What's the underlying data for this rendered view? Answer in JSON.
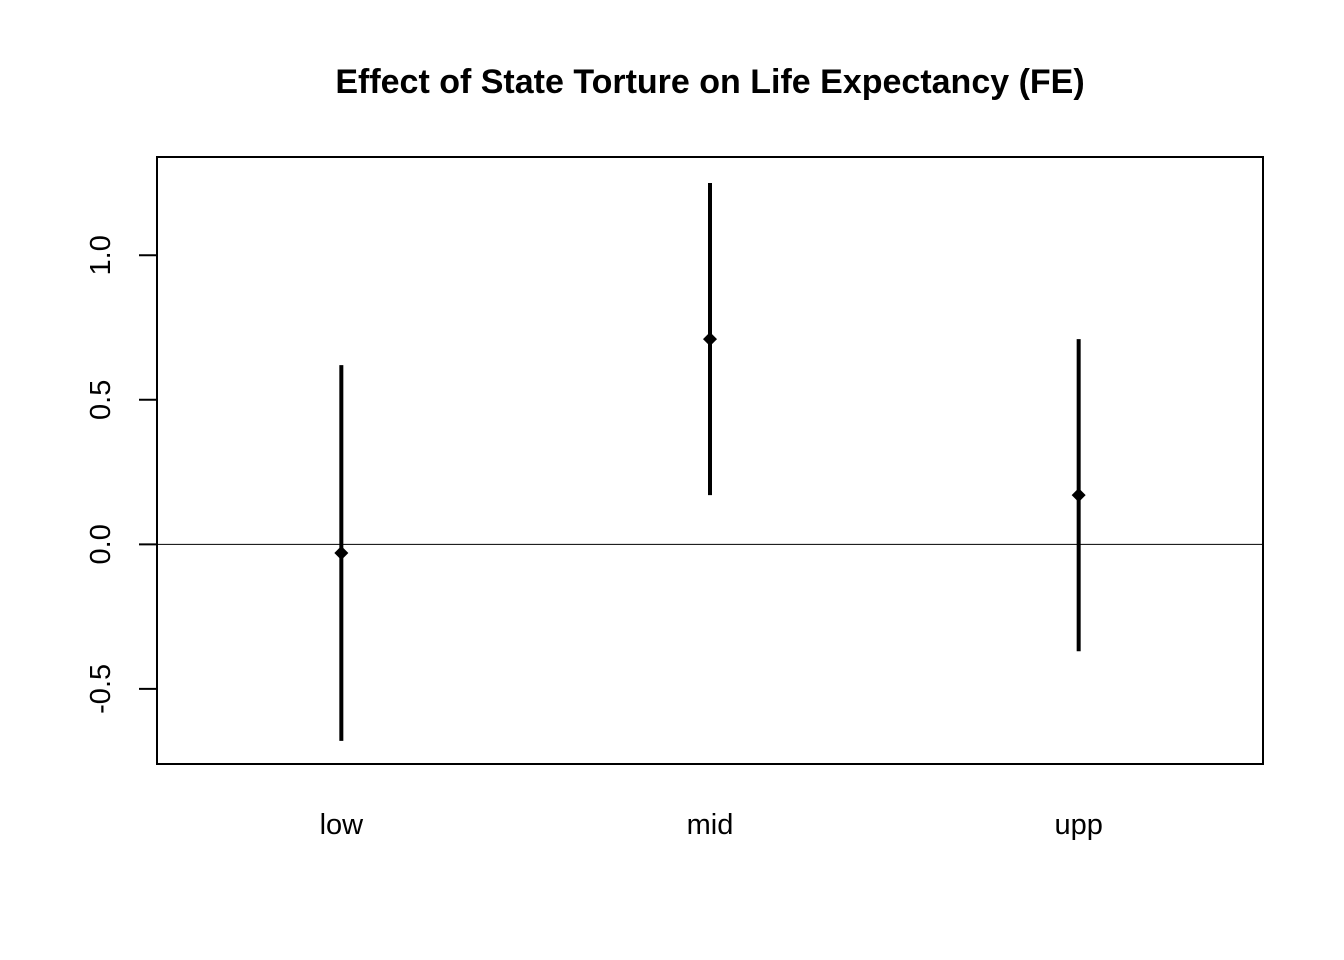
{
  "chart_data": {
    "type": "errorbar",
    "title": "Effect of State Torture on Life Expectancy (FE)",
    "xlabel": "",
    "ylabel": "",
    "categories": [
      "low",
      "mid",
      "upp"
    ],
    "estimates": [
      -0.03,
      0.71,
      0.17
    ],
    "lower": [
      -0.68,
      0.17,
      -0.37
    ],
    "upper": [
      0.62,
      1.25,
      0.71
    ],
    "ylim": [
      -0.76,
      1.34
    ],
    "yticks": [
      -0.5,
      0.0,
      0.5,
      1.0
    ],
    "ytick_labels": [
      "-0.5",
      "0.0",
      "0.5",
      "1.0"
    ],
    "reference_line_y": 0,
    "grid": false,
    "legend": "none",
    "colors": {
      "marks": "#000000",
      "frame": "#000000",
      "background": "#ffffff"
    }
  }
}
